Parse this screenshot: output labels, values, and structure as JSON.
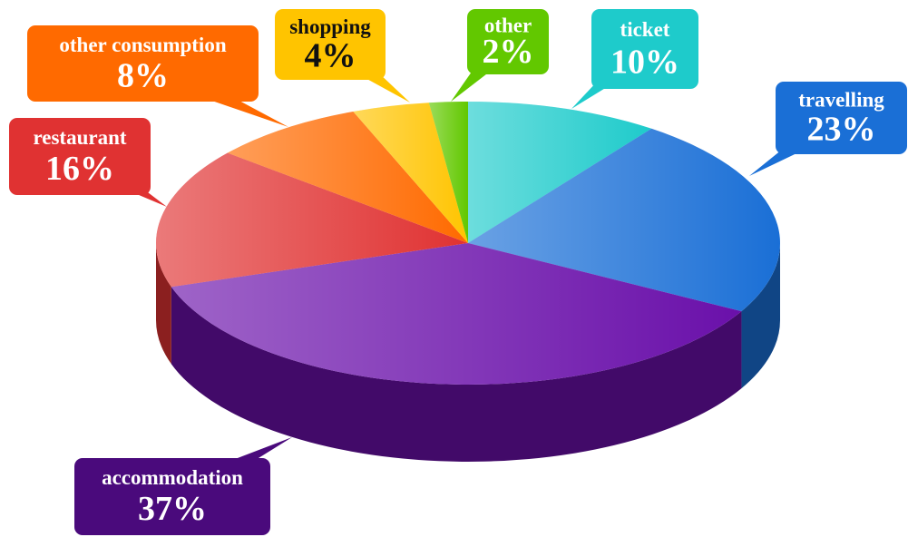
{
  "chart_data": {
    "type": "pie",
    "categories": [
      "ticket",
      "travelling",
      "accommodation",
      "restaurant",
      "other consumption",
      "shopping",
      "other"
    ],
    "values": [
      10,
      23,
      37,
      16,
      8,
      4,
      2
    ],
    "value_labels": [
      "10%",
      "23%",
      "37%",
      "16%",
      "8%",
      "4%",
      "2%"
    ],
    "colors": [
      "#1ecbcb",
      "#1a6fd6",
      "#6a10aa",
      "#e03232",
      "#ff6a00",
      "#ffc400",
      "#62c800"
    ]
  }
}
